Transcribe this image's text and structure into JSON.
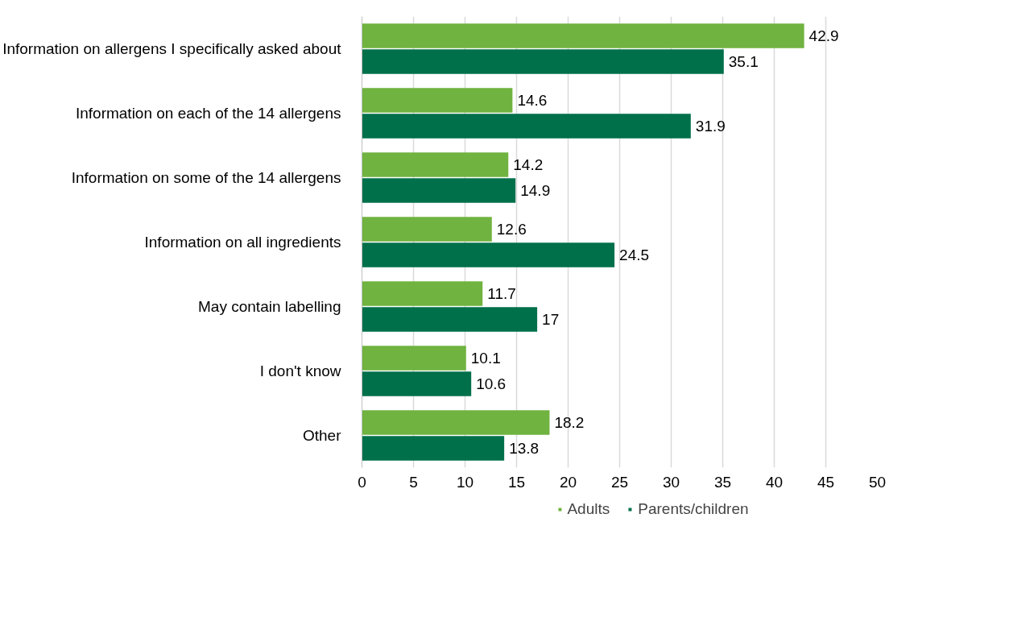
{
  "chart_data": {
    "type": "bar",
    "orientation": "horizontal",
    "categories": [
      "Information on allergens I specifically asked about",
      "Information on each of the 14 allergens",
      "Information on some of the 14 allergens",
      "Information on all ingredients",
      "May contain labelling",
      "I don't know",
      "Other"
    ],
    "series": [
      {
        "name": "Adults",
        "color": "#70b340",
        "values": [
          42.9,
          14.6,
          14.2,
          12.6,
          11.7,
          10.1,
          18.2
        ]
      },
      {
        "name": "Parents/children",
        "color": "#00704a",
        "values": [
          35.1,
          31.9,
          14.9,
          24.5,
          17,
          10.6,
          13.8
        ]
      }
    ],
    "xlim": [
      0,
      50
    ],
    "xticks": [
      0,
      5,
      10,
      15,
      20,
      25,
      30,
      35,
      40,
      45,
      50
    ],
    "grid": "x",
    "legend": "bottom",
    "data_labels": true
  }
}
